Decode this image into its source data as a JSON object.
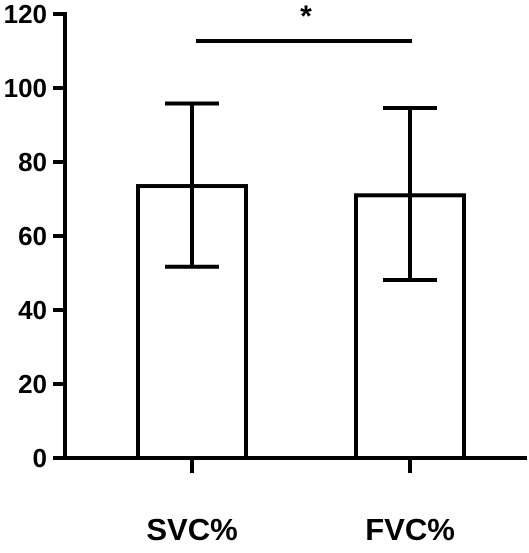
{
  "chart_data": {
    "type": "bar",
    "title": "",
    "xlabel": "",
    "ylabel": "",
    "categories": [
      "SVC%",
      "FVC%"
    ],
    "values": [
      73.5,
      71.0
    ],
    "error_bars": [
      {
        "lower": 51.7,
        "upper": 95.8
      },
      {
        "lower": 48.1,
        "upper": 94.6
      }
    ],
    "ylim": [
      0,
      120
    ],
    "yticks": [
      "0",
      "20",
      "40",
      "60",
      "80",
      "100",
      "120"
    ],
    "grid": false,
    "legend": "none",
    "significance": {
      "from": "SVC%",
      "to": "FVC%",
      "label": "*"
    },
    "colors": {
      "bar_fill": "#ffffff",
      "stroke": "#000000"
    }
  }
}
